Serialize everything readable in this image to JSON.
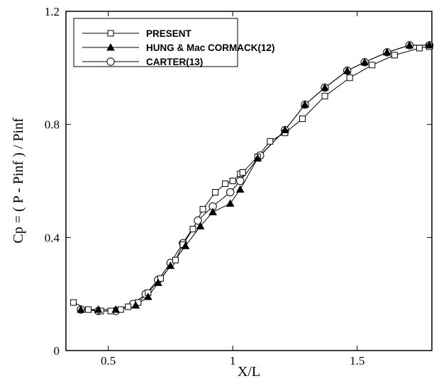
{
  "chart_data": {
    "type": "line",
    "title": "",
    "xlabel": "X/L",
    "ylabel": "Cp = ( P - Pinf ) / Pinf",
    "xlim": [
      0.33,
      1.8
    ],
    "ylim": [
      0,
      1.2
    ],
    "xticks": [
      0.5,
      1,
      1.5
    ],
    "xtick_labels": [
      "0.5",
      "1",
      "1.5"
    ],
    "yticks": [
      0,
      0.4,
      0.8,
      1.2
    ],
    "ytick_labels": [
      "0",
      "0.4",
      "0.8",
      "1.2"
    ],
    "grid": false,
    "legend_position": "top-left",
    "series": [
      {
        "name": "PRESENT",
        "marker": "square",
        "x": [
          0.36,
          0.42,
          0.47,
          0.51,
          0.55,
          0.58,
          0.62,
          0.66,
          0.71,
          0.77,
          0.8,
          0.84,
          0.88,
          0.93,
          0.97,
          1.0,
          1.03,
          1.04,
          1.1,
          1.15,
          1.21,
          1.28,
          1.37,
          1.47,
          1.56,
          1.65,
          1.75,
          1.79
        ],
        "y": [
          0.17,
          0.145,
          0.14,
          0.14,
          0.145,
          0.155,
          0.17,
          0.205,
          0.255,
          0.32,
          0.375,
          0.43,
          0.5,
          0.56,
          0.59,
          0.6,
          0.625,
          0.63,
          0.685,
          0.74,
          0.77,
          0.82,
          0.9,
          0.965,
          1.01,
          1.045,
          1.07,
          1.075
        ]
      },
      {
        "name": "HUNG & Mac CORMACK(12)",
        "marker": "triangle",
        "x": [
          0.39,
          0.46,
          0.53,
          0.61,
          0.66,
          0.7,
          0.75,
          0.81,
          0.87,
          0.92,
          0.99,
          1.03,
          1.1,
          1.21,
          1.29,
          1.37,
          1.46,
          1.53,
          1.62,
          1.71,
          1.79
        ],
        "y": [
          0.145,
          0.145,
          0.145,
          0.16,
          0.19,
          0.24,
          0.3,
          0.37,
          0.44,
          0.49,
          0.52,
          0.57,
          0.68,
          0.78,
          0.87,
          0.93,
          0.99,
          1.02,
          1.055,
          1.08,
          1.08
        ]
      },
      {
        "name": "CARTER(13)",
        "marker": "circle",
        "x": [
          0.39,
          0.46,
          0.53,
          0.6,
          0.65,
          0.7,
          0.75,
          0.8,
          0.86,
          0.92,
          0.99,
          1.03,
          1.11,
          1.21,
          1.29,
          1.37,
          1.46,
          1.53,
          1.62,
          1.71,
          1.79
        ],
        "y": [
          0.145,
          0.14,
          0.14,
          0.165,
          0.2,
          0.25,
          0.31,
          0.38,
          0.46,
          0.51,
          0.56,
          0.6,
          0.69,
          0.78,
          0.87,
          0.93,
          0.99,
          1.02,
          1.055,
          1.08,
          1.08
        ]
      }
    ]
  }
}
